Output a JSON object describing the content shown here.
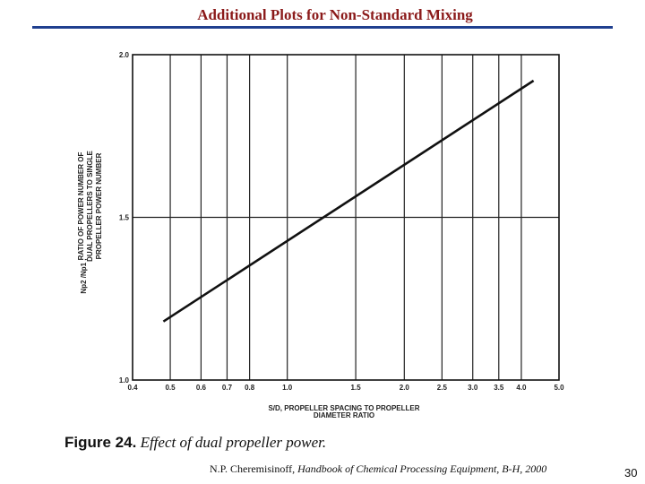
{
  "slide": {
    "title": "Additional Plots for Non-Standard Mixing",
    "figure_number": "Figure 24.",
    "figure_caption": "Effect of dual propeller power.",
    "citation_author": "N.P. Cheremisinoff,",
    "citation_work": "Handbook of Chemical Processing Equipment, B-H, 2000",
    "page_number": "30",
    "accent_color": "#8b1a1a",
    "rule_color": "#1f3f8f"
  },
  "chart_data": {
    "type": "line",
    "x_scale": "log",
    "xlim": [
      0.4,
      5.0
    ],
    "ylim": [
      1.0,
      2.0
    ],
    "x_ticks": [
      {
        "value": 0.4,
        "label": "0.4"
      },
      {
        "value": 0.5,
        "label": "0.5"
      },
      {
        "value": 0.6,
        "label": "0.6"
      },
      {
        "value": 0.7,
        "label": "0.7"
      },
      {
        "value": 0.8,
        "label": "0.8"
      },
      {
        "value": 1.0,
        "label": "1.0"
      },
      {
        "value": 1.5,
        "label": "1.5"
      },
      {
        "value": 2.0,
        "label": "2.0"
      },
      {
        "value": 2.5,
        "label": "2.5"
      },
      {
        "value": 3.0,
        "label": "3.0"
      },
      {
        "value": 3.5,
        "label": "3.5"
      },
      {
        "value": 4.0,
        "label": "4.0"
      },
      {
        "value": 5.0,
        "label": "5.0"
      }
    ],
    "y_ticks": [
      {
        "value": 1.0,
        "label": "1.0"
      },
      {
        "value": 1.5,
        "label": "1.5"
      },
      {
        "value": 2.0,
        "label": "2.0"
      }
    ],
    "xlabel_line1": "S/D, PROPELLER SPACING TO PROPELLER",
    "xlabel_line2": "DIAMETER RATIO",
    "ylabel_symbol": "Np2 /Np1 ,",
    "ylabel_line1": "RATIO OF POWER NUMBER OF",
    "ylabel_line2": "DUAL PROPELLERS TO SINGLE",
    "ylabel_line3": "PROPELLER POWER NUMBER",
    "grid": true,
    "series": [
      {
        "x": [
          0.48,
          4.3
        ],
        "y": [
          1.18,
          1.92
        ]
      }
    ]
  }
}
